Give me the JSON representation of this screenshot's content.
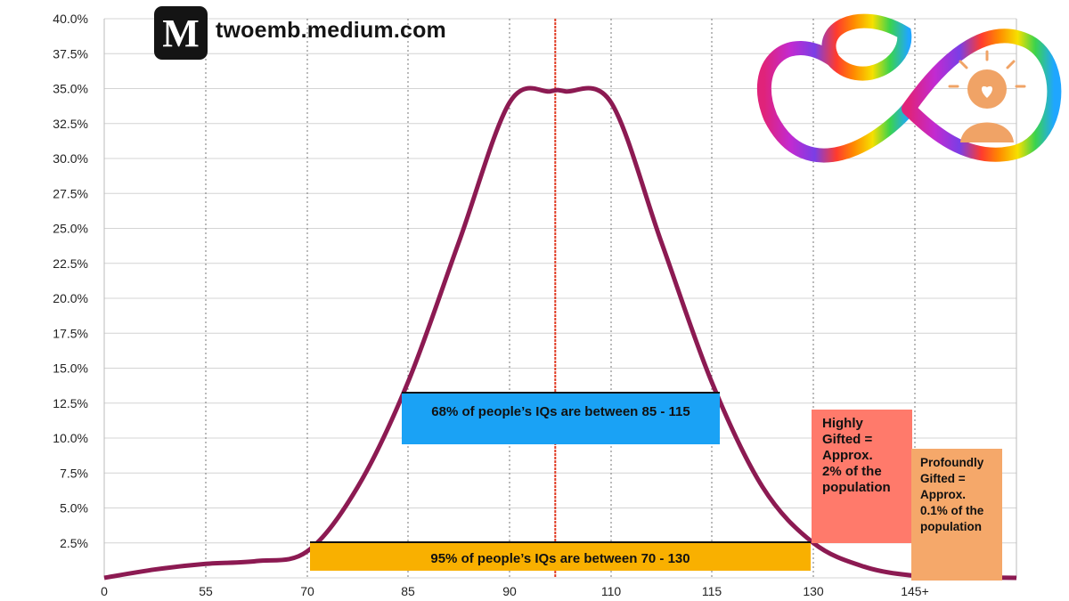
{
  "header": {
    "logo_letter": "M",
    "site": "twoemb.medium.com"
  },
  "chart_data": {
    "type": "line",
    "x_tick_labels": [
      "0",
      "55",
      "70",
      "85",
      "90",
      "110",
      "115",
      "130",
      "145+"
    ],
    "y_tick_labels": [
      "40.0%",
      "37.5%",
      "35.0%",
      "32.5%",
      "30.0%",
      "27.5%",
      "25.0%",
      "22.5%",
      "20.0%",
      "17.5%",
      "15.0%",
      "12.5%",
      "10.0%",
      "7.5%",
      "5.0%",
      "2.5%"
    ],
    "ylim": [
      0,
      40
    ],
    "grid": true,
    "series": [
      {
        "x_ticks": [
          "0",
          "",
          "55",
          "",
          "70",
          "",
          "85",
          "",
          "90",
          "",
          "",
          "110",
          "",
          "115",
          "",
          "130",
          "",
          "145+",
          "",
          ""
        ],
        "x_tick_positions": [
          0,
          0.5,
          1,
          1.5,
          2,
          2.5,
          3,
          3.5,
          4,
          4.4,
          4.55,
          5,
          5.5,
          6,
          6.5,
          7,
          7.5,
          8,
          8.5,
          9.0
        ],
        "values": [
          0,
          0.6,
          1.0,
          1.2,
          1.9,
          6.5,
          14.0,
          24.0,
          34.0,
          34.8,
          34.8,
          34.0,
          24.0,
          14.0,
          6.5,
          2.5,
          0.8,
          0.15,
          0.05,
          0.0
        ]
      }
    ],
    "mean_line_x": 4.45,
    "annotations": {
      "range_68": "68% of people’s IQs are between 85 - 115",
      "range_95": "95% of people’s IQs are between 70 - 130",
      "highly_gifted": [
        "Highly",
        "Gifted =",
        "Approx.",
        "2% of the",
        "population"
      ],
      "profoundly_gifted": [
        "Profoundly",
        "Gifted =",
        "Approx.",
        "0.1% of the",
        "population"
      ]
    }
  },
  "colors": {
    "curve": "#8c1a52",
    "mean_line": "#e03b24",
    "box_68": "#1aa2f5",
    "box_95": "#f9b000",
    "box_highly": "#ff7a6b",
    "box_profound": "#f5a86a"
  },
  "icons": {
    "brand_logo": "infinity-heart-person-icon"
  }
}
